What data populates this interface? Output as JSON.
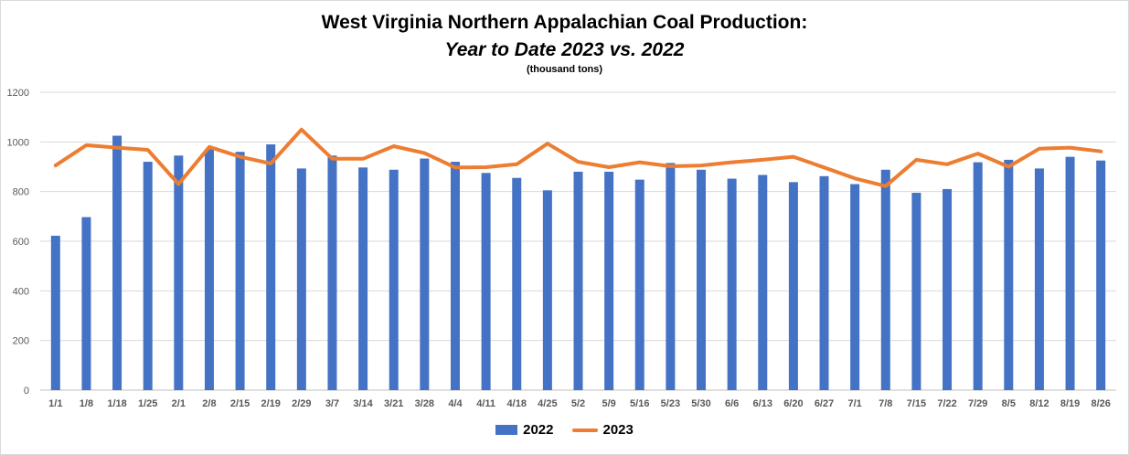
{
  "chart_data": {
    "type": "bar+line",
    "title": "West Virginia Northern Appalachian Coal Production:",
    "subtitle": "Year to Date 2023 vs. 2022",
    "units_note": "(thousand tons)",
    "xlabel": "",
    "ylabel": "",
    "ylim": [
      0,
      1200
    ],
    "yticks": [
      0,
      200,
      400,
      600,
      800,
      1000,
      1200
    ],
    "grid": true,
    "legend_position": "bottom",
    "categories": [
      "1/1",
      "1/8",
      "1/18",
      "1/25",
      "2/1",
      "2/8",
      "2/15",
      "2/19",
      "2/29",
      "3/7",
      "3/14",
      "3/21",
      "3/28",
      "4/4",
      "4/11",
      "4/18",
      "4/25",
      "5/2",
      "5/9",
      "5/16",
      "5/23",
      "5/30",
      "6/6",
      "6/13",
      "6/20",
      "6/27",
      "7/1",
      "7/8",
      "7/15",
      "7/22",
      "7/29",
      "8/5",
      "8/12",
      "8/19",
      "8/26"
    ],
    "series": [
      {
        "name": "2022",
        "kind": "bar",
        "color": "#4472c4",
        "values": [
          622,
          697,
          1025,
          920,
          945,
          970,
          960,
          990,
          893,
          945,
          897,
          888,
          933,
          920,
          875,
          855,
          805,
          880,
          880,
          848,
          915,
          888,
          852,
          867,
          838,
          862,
          830,
          888,
          795,
          810,
          918,
          928,
          893,
          940,
          925
        ]
      },
      {
        "name": "2023",
        "kind": "line",
        "color": "#ed7d31",
        "values": [
          905,
          987,
          977,
          968,
          830,
          980,
          940,
          913,
          1050,
          932,
          932,
          983,
          955,
          897,
          898,
          910,
          993,
          920,
          898,
          918,
          902,
          905,
          918,
          928,
          940,
          897,
          853,
          822,
          928,
          910,
          953,
          900,
          973,
          977,
          962
        ]
      }
    ]
  }
}
